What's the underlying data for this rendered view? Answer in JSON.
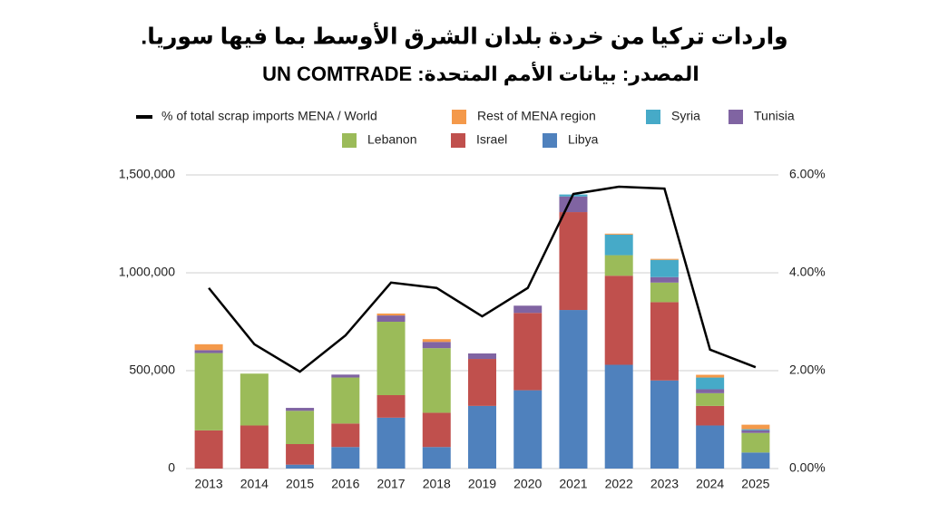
{
  "chart_data": {
    "type": "bar",
    "title": "واردات تركيا من خردة بلدان الشرق الأوسط بما فيها سوريا.",
    "subtitle": "المصدر: بيانات الأمم المتحدة: UN COMTRADE",
    "stacked": true,
    "categories": [
      "2013",
      "2014",
      "2015",
      "2016",
      "2017",
      "2018",
      "2019",
      "2020",
      "2021",
      "2022",
      "2023",
      "2024",
      "2025"
    ],
    "series": [
      {
        "name": "% of total scrap imports MENA / World",
        "type": "line",
        "axis": "y2",
        "color": "#000000",
        "values": [
          3.69,
          2.54,
          1.98,
          2.72,
          3.8,
          3.69,
          3.11,
          3.69,
          5.61,
          5.76,
          5.72,
          2.43,
          2.07
        ]
      },
      {
        "name": "Rest of MENA region",
        "color": "#f4994a",
        "values": [
          30000,
          0,
          0,
          0,
          10000,
          14000,
          0,
          0,
          0,
          5000,
          5000,
          14000,
          23000
        ]
      },
      {
        "name": "Syria",
        "color": "#46aac8",
        "values": [
          0,
          0,
          0,
          0,
          0,
          0,
          0,
          0,
          10000,
          105000,
          88000,
          60000,
          5000
        ]
      },
      {
        "name": "Tunisia",
        "color": "#8064a2",
        "values": [
          15000,
          0,
          15000,
          15000,
          32000,
          32000,
          28000,
          37000,
          80000,
          0,
          28000,
          20000,
          14000
        ]
      },
      {
        "name": "Lebanon",
        "color": "#9bbb59",
        "values": [
          395000,
          265000,
          170000,
          235000,
          375000,
          330000,
          0,
          0,
          0,
          105000,
          100000,
          65000,
          100000
        ]
      },
      {
        "name": "Israel",
        "color": "#c0504d",
        "values": [
          195000,
          220000,
          105000,
          120000,
          115000,
          175000,
          240000,
          395000,
          500000,
          455000,
          400000,
          100000,
          0
        ]
      },
      {
        "name": "Libya",
        "color": "#4f81bd",
        "values": [
          0,
          0,
          20000,
          110000,
          260000,
          110000,
          320000,
          400000,
          810000,
          530000,
          450000,
          220000,
          82000
        ]
      }
    ],
    "ylim": [
      0,
      1500000
    ],
    "yticks": [
      0,
      {
        "value": 500000,
        "label": "500,000"
      },
      {
        "value": 1000000,
        "label": "1,000,000"
      },
      {
        "value": 1500000,
        "label": "1,500,000"
      }
    ],
    "y2lim": [
      0,
      6
    ],
    "y2ticks": [
      {
        "value": 0,
        "label": "0.00%"
      },
      {
        "value": 2,
        "label": "2.00%"
      },
      {
        "value": 4,
        "label": "4.00%"
      },
      {
        "value": 6,
        "label": "6.00%"
      }
    ],
    "grid": true,
    "legend": "top"
  }
}
